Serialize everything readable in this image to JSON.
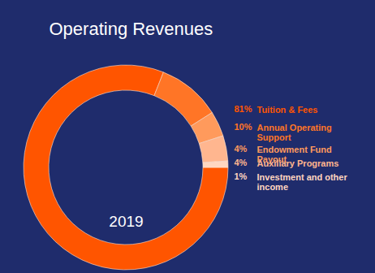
{
  "chart_data": {
    "type": "donut",
    "title": "Operating Revenues",
    "annotation": "2019",
    "categories": [
      "Tuition & Fees",
      "Annual Operating Support",
      "Endowment Fund Payout",
      "Auxiliary Programs",
      "Investment and other income"
    ],
    "values": [
      81,
      10,
      4,
      4,
      1
    ],
    "value_labels": [
      "81%",
      "10%",
      "4%",
      "4%",
      "1%"
    ],
    "colors": [
      "#ff5500",
      "#ff7526",
      "#ff9a5c",
      "#ffb68f",
      "#ffd6c0"
    ],
    "legend": "right"
  }
}
